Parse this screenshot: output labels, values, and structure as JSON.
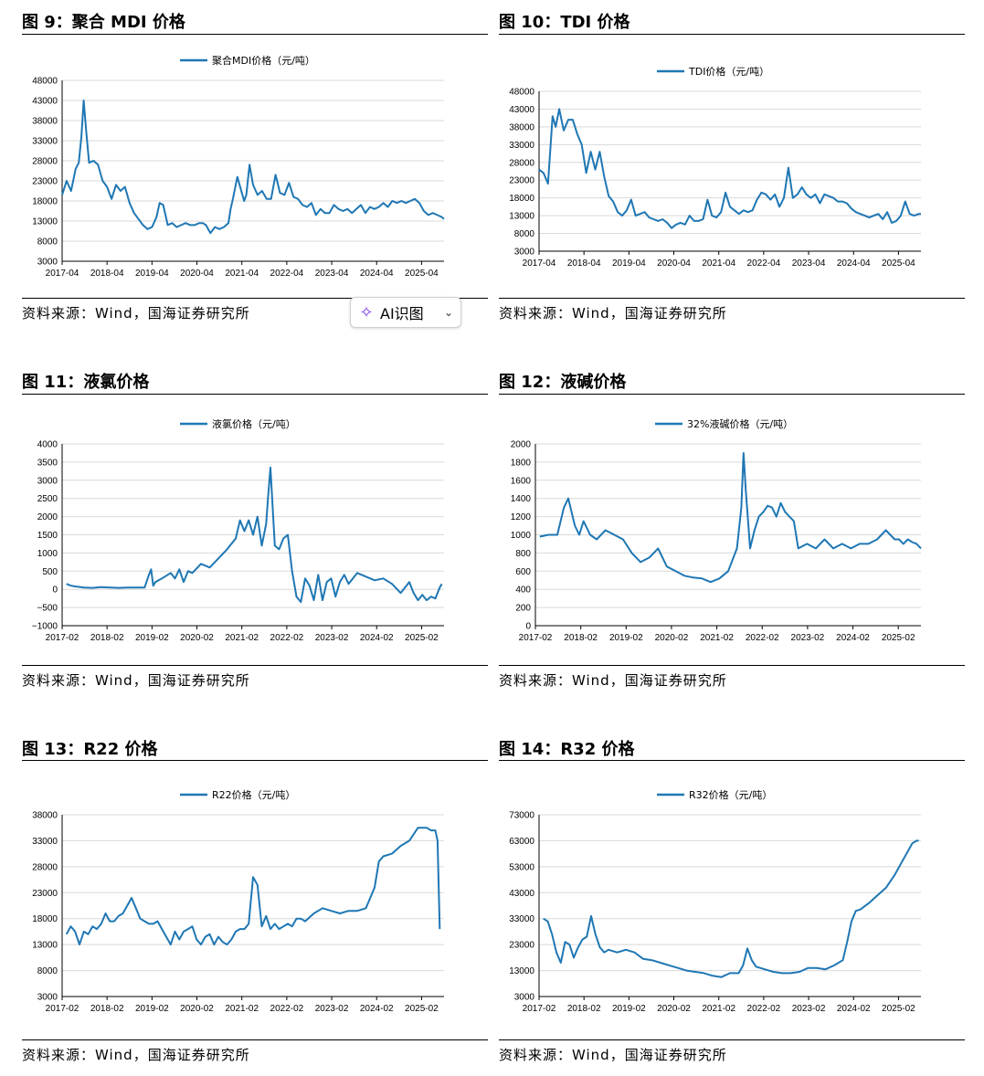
{
  "panels": [
    {
      "fig_title": "图 9：聚合 MDI 价格",
      "source": "资料来源：Wind，国海证券研究所"
    },
    {
      "fig_title": "图 10：TDI 价格",
      "source": "资料来源：Wind，国海证券研究所"
    },
    {
      "fig_title": "图 11：液氯价格",
      "source": "资料来源：Wind，国海证券研究所"
    },
    {
      "fig_title": "图 12：液碱价格",
      "source": "资料来源：Wind，国海证券研究所"
    },
    {
      "fig_title": "图 13：R22 价格",
      "source": "资料来源：Wind，国海证券研究所"
    },
    {
      "fig_title": "图 14：R32 价格",
      "source": "资料来源：Wind，国海证券研究所"
    }
  ],
  "ai_button": {
    "label": "AI识图",
    "icon": "sparkle-icon",
    "chevron": "chevron-down-icon"
  },
  "line_color": "#1f77b4",
  "chart_data": [
    {
      "type": "line",
      "legend": "聚合MDI价格（元/吨）",
      "legend_position": "top-center",
      "grid": "horizontal",
      "ylim": [
        3000,
        48000
      ],
      "yticks": [
        "3000",
        "8000",
        "13000",
        "18000",
        "23000",
        "28000",
        "33000",
        "38000",
        "43000",
        "48000"
      ],
      "xlim": [
        2017.25,
        2025.75
      ],
      "xticks": [
        "2017-04",
        "2018-04",
        "2019-04",
        "2020-04",
        "2021-04",
        "2022-04",
        "2023-04",
        "2024-04",
        "2025-04"
      ],
      "x": [
        2017.25,
        2017.35,
        2017.45,
        2017.55,
        2017.62,
        2017.68,
        2017.73,
        2017.78,
        2017.85,
        2017.95,
        2018.05,
        2018.15,
        2018.25,
        2018.35,
        2018.45,
        2018.55,
        2018.65,
        2018.75,
        2018.85,
        2018.95,
        2019.05,
        2019.15,
        2019.25,
        2019.35,
        2019.42,
        2019.5,
        2019.6,
        2019.7,
        2019.8,
        2019.9,
        2020.0,
        2020.1,
        2020.2,
        2020.3,
        2020.38,
        2020.45,
        2020.55,
        2020.65,
        2020.75,
        2020.85,
        2020.95,
        2021.0,
        2021.05,
        2021.15,
        2021.25,
        2021.3,
        2021.35,
        2021.42,
        2021.5,
        2021.6,
        2021.7,
        2021.8,
        2021.9,
        2022.0,
        2022.1,
        2022.2,
        2022.3,
        2022.4,
        2022.5,
        2022.6,
        2022.7,
        2022.8,
        2022.9,
        2023.0,
        2023.1,
        2023.2,
        2023.3,
        2023.4,
        2023.5,
        2023.6,
        2023.7,
        2023.8,
        2023.9,
        2024.0,
        2024.1,
        2024.2,
        2024.3,
        2024.4,
        2024.5,
        2024.6,
        2024.7,
        2024.8,
        2024.9,
        2025.0,
        2025.1,
        2025.2,
        2025.3,
        2025.4,
        2025.5,
        2025.6,
        2025.7,
        2025.75
      ],
      "values": [
        19500,
        23000,
        20500,
        26000,
        27500,
        34000,
        43000,
        36000,
        27500,
        28000,
        27000,
        23000,
        21500,
        18500,
        22000,
        20500,
        21500,
        17500,
        15000,
        13500,
        12000,
        11000,
        11500,
        14000,
        17500,
        17000,
        12000,
        12500,
        11500,
        12000,
        12500,
        12000,
        12000,
        12500,
        12500,
        12000,
        10000,
        11500,
        11000,
        11500,
        12500,
        16000,
        18500,
        24000,
        20000,
        18000,
        19500,
        27000,
        22000,
        19500,
        20500,
        18500,
        18500,
        24500,
        20000,
        19500,
        22500,
        19000,
        18500,
        17000,
        16500,
        17500,
        14500,
        16000,
        15000,
        15000,
        17000,
        16000,
        15500,
        16000,
        15000,
        16000,
        17000,
        15000,
        16500,
        16000,
        16500,
        17500,
        16500,
        18000,
        17500,
        18000,
        17500,
        18000,
        18500,
        17500,
        15500,
        14500,
        15000,
        14500,
        14000,
        13500
      ]
    },
    {
      "type": "line",
      "legend": "TDI价格（元/吨）",
      "legend_position": "top-center",
      "grid": "horizontal",
      "ylim": [
        3000,
        48000
      ],
      "yticks": [
        "3000",
        "8000",
        "13000",
        "18000",
        "23000",
        "28000",
        "33000",
        "38000",
        "43000",
        "48000"
      ],
      "xlim": [
        2017.25,
        2025.75
      ],
      "xticks": [
        "2017-04",
        "2018-04",
        "2019-04",
        "2020-04",
        "2021-04",
        "2022-04",
        "2023-04",
        "2024-04",
        "2025-04"
      ],
      "x": [
        2017.25,
        2017.35,
        2017.45,
        2017.55,
        2017.62,
        2017.7,
        2017.8,
        2017.9,
        2018.0,
        2018.1,
        2018.2,
        2018.3,
        2018.4,
        2018.5,
        2018.6,
        2018.7,
        2018.8,
        2018.9,
        2019.0,
        2019.1,
        2019.2,
        2019.3,
        2019.4,
        2019.5,
        2019.6,
        2019.7,
        2019.8,
        2019.9,
        2020.0,
        2020.1,
        2020.2,
        2020.3,
        2020.4,
        2020.5,
        2020.6,
        2020.7,
        2020.8,
        2020.9,
        2021.0,
        2021.1,
        2021.2,
        2021.3,
        2021.4,
        2021.5,
        2021.6,
        2021.7,
        2021.8,
        2021.9,
        2022.0,
        2022.1,
        2022.2,
        2022.3,
        2022.4,
        2022.5,
        2022.6,
        2022.7,
        2022.8,
        2022.9,
        2023.0,
        2023.1,
        2023.2,
        2023.3,
        2023.4,
        2023.5,
        2023.6,
        2023.7,
        2023.8,
        2023.9,
        2024.0,
        2024.1,
        2024.2,
        2024.3,
        2024.4,
        2024.5,
        2024.6,
        2024.7,
        2024.8,
        2024.9,
        2025.0,
        2025.1,
        2025.2,
        2025.3,
        2025.4,
        2025.5,
        2025.6,
        2025.7,
        2025.75
      ],
      "values": [
        26000,
        25000,
        22000,
        41000,
        38000,
        43000,
        37000,
        40000,
        40000,
        36000,
        33000,
        25000,
        31000,
        26000,
        31000,
        24000,
        18500,
        17000,
        14000,
        13000,
        14500,
        17500,
        13000,
        13500,
        14000,
        12500,
        12000,
        11500,
        12000,
        11000,
        9500,
        10500,
        11000,
        10500,
        13000,
        11500,
        11500,
        12000,
        17500,
        13000,
        12500,
        14000,
        19500,
        15500,
        14500,
        13500,
        14500,
        14000,
        14500,
        17500,
        19500,
        19000,
        17500,
        19000,
        15500,
        18000,
        26500,
        18000,
        19000,
        21000,
        19000,
        18000,
        19000,
        16500,
        19000,
        18500,
        18000,
        17000,
        17000,
        16500,
        15000,
        14000,
        13500,
        13000,
        12500,
        13000,
        13500,
        12000,
        14000,
        11000,
        11500,
        13000,
        17000,
        13500,
        13000,
        13500,
        13500
      ]
    },
    {
      "type": "line",
      "legend": "液氯价格（元/吨）",
      "legend_position": "top-center",
      "grid": "horizontal",
      "ylim": [
        -1000,
        4000
      ],
      "yticks": [
        "−1000",
        "−500",
        "0",
        "500",
        "1000",
        "1500",
        "2000",
        "2500",
        "3000",
        "3500",
        "4000"
      ],
      "xlim": [
        2017.0,
        2025.8
      ],
      "xticks": [
        "2017-02",
        "2018-02",
        "2019-02",
        "2020-02",
        "2021-02",
        "2022-02",
        "2023-02",
        "2024-02",
        "2025-02"
      ],
      "x": [
        2017.1,
        2017.2,
        2017.3,
        2017.5,
        2017.7,
        2017.9,
        2018.1,
        2018.3,
        2018.5,
        2018.7,
        2018.9,
        2019.0,
        2019.05,
        2019.1,
        2019.15,
        2019.3,
        2019.5,
        2019.6,
        2019.7,
        2019.8,
        2019.9,
        2020.0,
        2020.2,
        2020.4,
        2020.6,
        2020.8,
        2021.0,
        2021.1,
        2021.2,
        2021.3,
        2021.4,
        2021.5,
        2021.6,
        2021.7,
        2021.75,
        2021.8,
        2021.9,
        2022.0,
        2022.1,
        2022.2,
        2022.3,
        2022.4,
        2022.5,
        2022.6,
        2022.7,
        2022.8,
        2022.9,
        2023.0,
        2023.1,
        2023.2,
        2023.3,
        2023.4,
        2023.5,
        2023.6,
        2023.8,
        2024.0,
        2024.2,
        2024.4,
        2024.6,
        2024.8,
        2025.0,
        2025.1,
        2025.2,
        2025.3,
        2025.4,
        2025.5,
        2025.6,
        2025.7,
        2025.75
      ],
      "values": [
        150,
        100,
        80,
        50,
        40,
        60,
        50,
        40,
        50,
        50,
        50,
        400,
        550,
        100,
        200,
        300,
        450,
        300,
        550,
        200,
        500,
        450,
        700,
        600,
        850,
        1100,
        1400,
        1900,
        1600,
        1900,
        1500,
        2000,
        1200,
        1800,
        2600,
        3350,
        1200,
        1100,
        1400,
        1500,
        500,
        -200,
        -350,
        300,
        100,
        -300,
        400,
        -300,
        200,
        300,
        -200,
        200,
        400,
        150,
        450,
        350,
        250,
        300,
        150,
        -100,
        200,
        -100,
        -300,
        -150,
        -300,
        -200,
        -250,
        50,
        150
      ]
    },
    {
      "type": "line",
      "legend": "32%液碱价格（元/吨）",
      "legend_position": "top-center",
      "grid": "horizontal",
      "ylim": [
        0,
        2000
      ],
      "yticks": [
        "0",
        "200",
        "400",
        "600",
        "800",
        "1000",
        "1200",
        "1400",
        "1600",
        "1800",
        "2000"
      ],
      "xlim": [
        2017.0,
        2025.8
      ],
      "xticks": [
        "2017-02",
        "2018-02",
        "2019-02",
        "2020-02",
        "2021-02",
        "2022-02",
        "2023-02",
        "2024-02",
        "2025-02"
      ],
      "x": [
        2017.1,
        2017.3,
        2017.5,
        2017.65,
        2017.75,
        2017.9,
        2018.0,
        2018.1,
        2018.25,
        2018.4,
        2018.6,
        2018.8,
        2019.0,
        2019.2,
        2019.4,
        2019.6,
        2019.8,
        2020.0,
        2020.2,
        2020.4,
        2020.6,
        2020.8,
        2021.0,
        2021.2,
        2021.4,
        2021.6,
        2021.7,
        2021.75,
        2021.8,
        2021.9,
        2022.0,
        2022.1,
        2022.2,
        2022.3,
        2022.4,
        2022.5,
        2022.6,
        2022.7,
        2022.8,
        2022.9,
        2023.0,
        2023.2,
        2023.4,
        2023.6,
        2023.8,
        2024.0,
        2024.2,
        2024.4,
        2024.6,
        2024.8,
        2025.0,
        2025.1,
        2025.2,
        2025.3,
        2025.4,
        2025.5,
        2025.6,
        2025.7,
        2025.8
      ],
      "values": [
        980,
        1000,
        1000,
        1300,
        1400,
        1100,
        1000,
        1150,
        1000,
        950,
        1050,
        1000,
        950,
        800,
        700,
        750,
        850,
        650,
        600,
        550,
        530,
        520,
        480,
        520,
        600,
        850,
        1300,
        1900,
        1500,
        850,
        1050,
        1200,
        1250,
        1320,
        1300,
        1200,
        1350,
        1250,
        1200,
        1150,
        850,
        900,
        850,
        950,
        850,
        900,
        850,
        900,
        900,
        950,
        1050,
        1000,
        950,
        950,
        900,
        950,
        920,
        900,
        850
      ]
    },
    {
      "type": "line",
      "legend": "R22价格（元/吨）",
      "legend_position": "top-center",
      "grid": "horizontal",
      "ylim": [
        3000,
        38000
      ],
      "yticks": [
        "3000",
        "8000",
        "13000",
        "18000",
        "23000",
        "28000",
        "33000",
        "38000"
      ],
      "xlim": [
        2017.0,
        2025.8
      ],
      "xticks": [
        "2017-02",
        "2018-02",
        "2019-02",
        "2020-02",
        "2021-02",
        "2022-02",
        "2023-02",
        "2024-02",
        "2025-02"
      ],
      "x": [
        2017.1,
        2017.2,
        2017.3,
        2017.4,
        2017.5,
        2017.6,
        2017.7,
        2017.8,
        2017.9,
        2018.0,
        2018.1,
        2018.2,
        2018.3,
        2018.4,
        2018.5,
        2018.6,
        2018.7,
        2018.8,
        2018.9,
        2019.0,
        2019.1,
        2019.2,
        2019.3,
        2019.4,
        2019.5,
        2019.6,
        2019.7,
        2019.8,
        2019.9,
        2020.0,
        2020.1,
        2020.2,
        2020.3,
        2020.4,
        2020.5,
        2020.6,
        2020.7,
        2020.8,
        2020.9,
        2021.0,
        2021.1,
        2021.2,
        2021.3,
        2021.4,
        2021.5,
        2021.6,
        2021.7,
        2021.8,
        2021.9,
        2022.0,
        2022.1,
        2022.2,
        2022.3,
        2022.4,
        2022.5,
        2022.6,
        2022.8,
        2023.0,
        2023.2,
        2023.4,
        2023.6,
        2023.8,
        2024.0,
        2024.2,
        2024.3,
        2024.4,
        2024.6,
        2024.8,
        2025.0,
        2025.2,
        2025.4,
        2025.5,
        2025.6,
        2025.65,
        2025.7
      ],
      "values": [
        15000,
        16500,
        15500,
        13000,
        15500,
        15000,
        16500,
        16000,
        17000,
        19000,
        17500,
        17500,
        18500,
        19000,
        20500,
        22000,
        20000,
        18000,
        17500,
        17000,
        17000,
        17500,
        16000,
        14500,
        13000,
        15500,
        14000,
        15500,
        16000,
        16500,
        14000,
        13000,
        14500,
        15000,
        13000,
        14500,
        13500,
        13000,
        14000,
        15500,
        16000,
        16000,
        17000,
        26000,
        24500,
        16500,
        18500,
        16000,
        17000,
        16000,
        16500,
        17000,
        16500,
        18000,
        18000,
        17500,
        19000,
        20000,
        19500,
        19000,
        19500,
        19500,
        20000,
        24000,
        29000,
        30000,
        30500,
        32000,
        33000,
        35500,
        35500,
        35000,
        35000,
        33000,
        16000
      ]
    },
    {
      "type": "line",
      "legend": "R32价格（元/吨）",
      "legend_position": "top-center",
      "grid": "horizontal",
      "ylim": [
        3000,
        73000
      ],
      "yticks": [
        "3000",
        "13000",
        "23000",
        "33000",
        "43000",
        "53000",
        "63000",
        "73000"
      ],
      "xlim": [
        2017.0,
        2025.8
      ],
      "xticks": [
        "2017-02",
        "2018-02",
        "2019-02",
        "2020-02",
        "2021-02",
        "2022-02",
        "2023-02",
        "2024-02",
        "2025-02"
      ],
      "x": [
        2017.1,
        2017.2,
        2017.3,
        2017.4,
        2017.5,
        2017.6,
        2017.7,
        2017.8,
        2017.9,
        2018.0,
        2018.1,
        2018.2,
        2018.3,
        2018.4,
        2018.5,
        2018.6,
        2018.8,
        2019.0,
        2019.2,
        2019.4,
        2019.6,
        2019.8,
        2020.0,
        2020.2,
        2020.4,
        2020.6,
        2020.8,
        2021.0,
        2021.2,
        2021.4,
        2021.6,
        2021.7,
        2021.8,
        2021.9,
        2022.0,
        2022.2,
        2022.4,
        2022.6,
        2022.8,
        2023.0,
        2023.2,
        2023.4,
        2023.6,
        2023.8,
        2024.0,
        2024.1,
        2024.2,
        2024.3,
        2024.4,
        2024.6,
        2024.8,
        2025.0,
        2025.2,
        2025.4,
        2025.5,
        2025.6,
        2025.7,
        2025.75
      ],
      "values": [
        33000,
        32000,
        27000,
        20000,
        16000,
        24000,
        23000,
        18000,
        22000,
        25000,
        26000,
        34000,
        27000,
        22000,
        20000,
        21000,
        20000,
        21000,
        20000,
        17500,
        17000,
        16000,
        15000,
        14000,
        13000,
        12500,
        12000,
        11000,
        10500,
        12000,
        12000,
        15000,
        21500,
        17000,
        14500,
        13500,
        12500,
        12000,
        12000,
        12500,
        14000,
        14000,
        13500,
        15000,
        17000,
        24000,
        32000,
        36000,
        36500,
        39000,
        42000,
        45000,
        50000,
        56000,
        59000,
        62000,
        63000,
        63000
      ]
    }
  ]
}
